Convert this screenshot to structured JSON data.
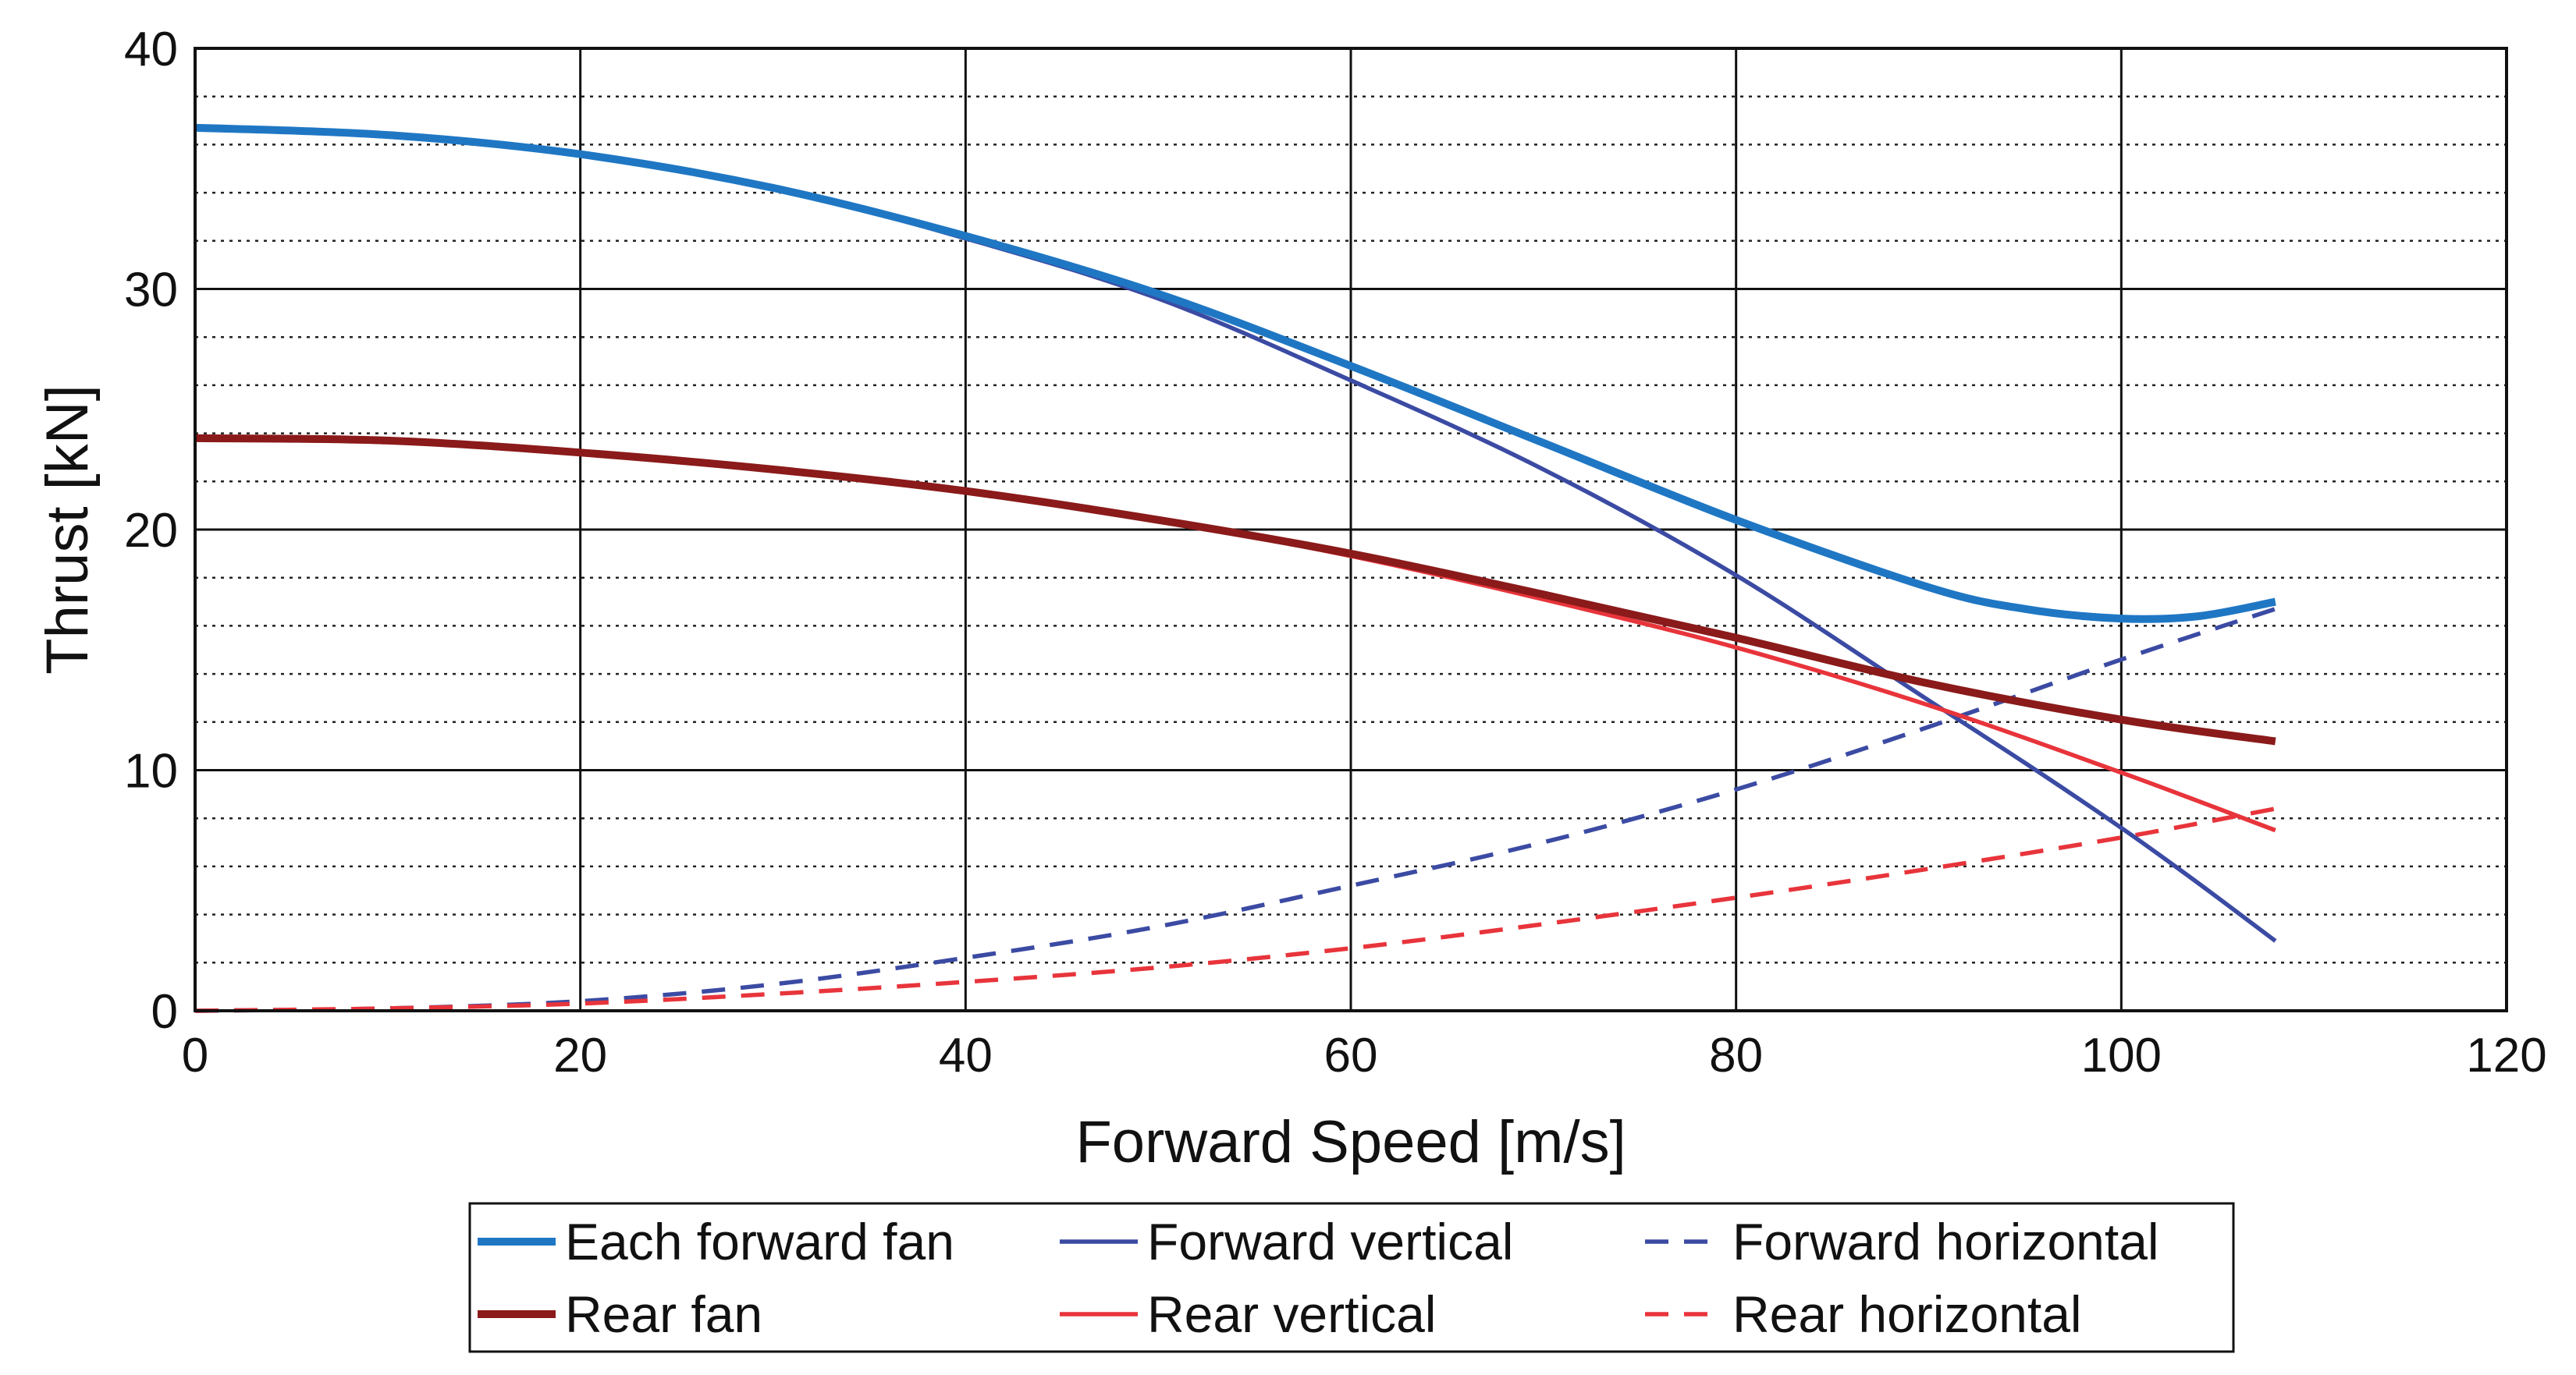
{
  "chart_data": {
    "type": "line",
    "title": "",
    "xlabel": "Forward Speed [m/s]",
    "ylabel": "Thrust [kN]",
    "xlim": [
      0,
      120
    ],
    "ylim": [
      0,
      40
    ],
    "xticks": [
      0,
      20,
      40,
      60,
      80,
      100,
      120
    ],
    "yticks": [
      0,
      10,
      20,
      30,
      40
    ],
    "x_tick_labels": [
      "0",
      "20",
      "40",
      "60",
      "80",
      "100",
      "120"
    ],
    "y_tick_labels": [
      "0",
      "10",
      "20",
      "30",
      "40"
    ],
    "grid": {
      "major": true,
      "minor_y_step": 2
    },
    "legend_placement": "bottom",
    "series": [
      {
        "name": "Each forward fan",
        "color": "#1f77c4",
        "style": "solid-thick",
        "x": [
          0,
          10,
          20,
          30,
          40,
          50,
          60,
          70,
          80,
          90,
          95,
          100,
          104,
          108
        ],
        "y": [
          36.7,
          36.4,
          35.6,
          34.2,
          32.2,
          29.8,
          26.8,
          23.6,
          20.4,
          17.6,
          16.7,
          16.3,
          16.4,
          17.0
        ]
      },
      {
        "name": "Forward vertical",
        "color": "#3b4ba3",
        "style": "solid",
        "x": [
          0,
          10,
          20,
          30,
          40,
          50,
          60,
          70,
          80,
          90,
          95,
          100,
          104,
          108
        ],
        "y": [
          36.7,
          36.4,
          35.6,
          34.2,
          32.1,
          29.6,
          26.2,
          22.5,
          18.1,
          12.9,
          10.3,
          7.6,
          5.3,
          2.9
        ]
      },
      {
        "name": "Forward horizontal",
        "color": "#3b4ba3",
        "style": "dashed",
        "x": [
          0,
          10,
          20,
          30,
          40,
          50,
          60,
          70,
          80,
          90,
          100,
          108
        ],
        "y": [
          0,
          0.1,
          0.4,
          1.1,
          2.2,
          3.5,
          5.2,
          7.0,
          9.2,
          11.8,
          14.6,
          16.7
        ]
      },
      {
        "name": "Rear fan",
        "color": "#8b1a1a",
        "style": "solid-thick",
        "x": [
          0,
          10,
          20,
          30,
          40,
          50,
          60,
          70,
          80,
          90,
          100,
          108
        ],
        "y": [
          23.8,
          23.7,
          23.2,
          22.5,
          21.6,
          20.4,
          19.0,
          17.3,
          15.5,
          13.6,
          12.1,
          11.2
        ]
      },
      {
        "name": "Rear vertical",
        "color": "#e8343b",
        "style": "solid",
        "x": [
          0,
          10,
          20,
          30,
          40,
          50,
          60,
          70,
          80,
          90,
          100,
          108
        ],
        "y": [
          23.8,
          23.7,
          23.2,
          22.5,
          21.6,
          20.4,
          18.9,
          17.1,
          15.1,
          12.7,
          9.9,
          7.5
        ]
      },
      {
        "name": "Rear horizontal",
        "color": "#e8343b",
        "style": "dashed",
        "x": [
          0,
          10,
          20,
          30,
          40,
          50,
          60,
          70,
          80,
          90,
          100,
          108
        ],
        "y": [
          0,
          0.1,
          0.3,
          0.7,
          1.2,
          1.8,
          2.6,
          3.6,
          4.7,
          5.9,
          7.2,
          8.4
        ]
      }
    ]
  }
}
